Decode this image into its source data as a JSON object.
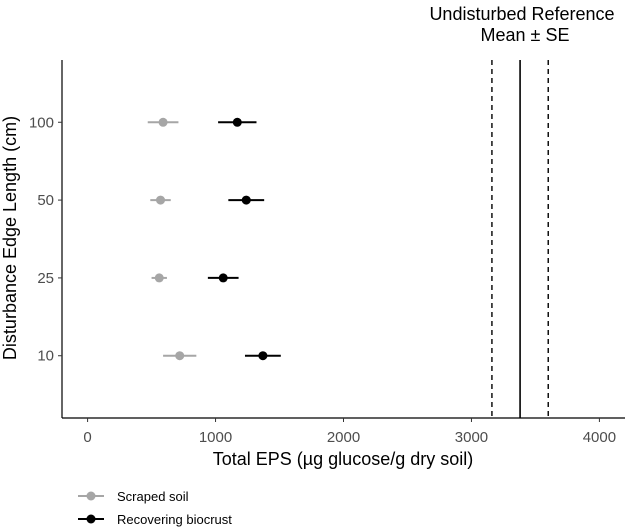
{
  "chart_data": {
    "type": "scatter",
    "subtype": "dot-and-whisker",
    "xlabel": "Total EPS (µg glucose/g dry soil)",
    "ylabel": "Disturbance Edge Length (cm)",
    "categories": [
      "10",
      "25",
      "50",
      "100"
    ],
    "xlim": [
      -200,
      4200
    ],
    "x_ticks": [
      0,
      1000,
      2000,
      3000,
      4000
    ],
    "grid": false,
    "series": [
      {
        "name": "Scraped soil",
        "color": "#a6a6a6",
        "points": [
          {
            "category": "10",
            "mean": 720,
            "lo": 590,
            "hi": 850
          },
          {
            "category": "25",
            "mean": 560,
            "lo": 500,
            "hi": 620
          },
          {
            "category": "50",
            "mean": 570,
            "lo": 490,
            "hi": 650
          },
          {
            "category": "100",
            "mean": 590,
            "lo": 470,
            "hi": 710
          }
        ]
      },
      {
        "name": "Recovering biocrust",
        "color": "#000000",
        "points": [
          {
            "category": "10",
            "mean": 1370,
            "lo": 1230,
            "hi": 1510
          },
          {
            "category": "25",
            "mean": 1060,
            "lo": 940,
            "hi": 1180
          },
          {
            "category": "50",
            "mean": 1240,
            "lo": 1100,
            "hi": 1380
          },
          {
            "category": "100",
            "mean": 1170,
            "lo": 1020,
            "hi": 1320
          }
        ]
      }
    ],
    "reference": {
      "label_line1": "Undisturbed Reference",
      "label_line2": "Mean  ± SE",
      "mean": 3380,
      "lo": 3160,
      "hi": 3600
    },
    "legend": {
      "placement": "bottom-left",
      "items": [
        "Scraped soil",
        "Recovering biocrust"
      ]
    }
  }
}
